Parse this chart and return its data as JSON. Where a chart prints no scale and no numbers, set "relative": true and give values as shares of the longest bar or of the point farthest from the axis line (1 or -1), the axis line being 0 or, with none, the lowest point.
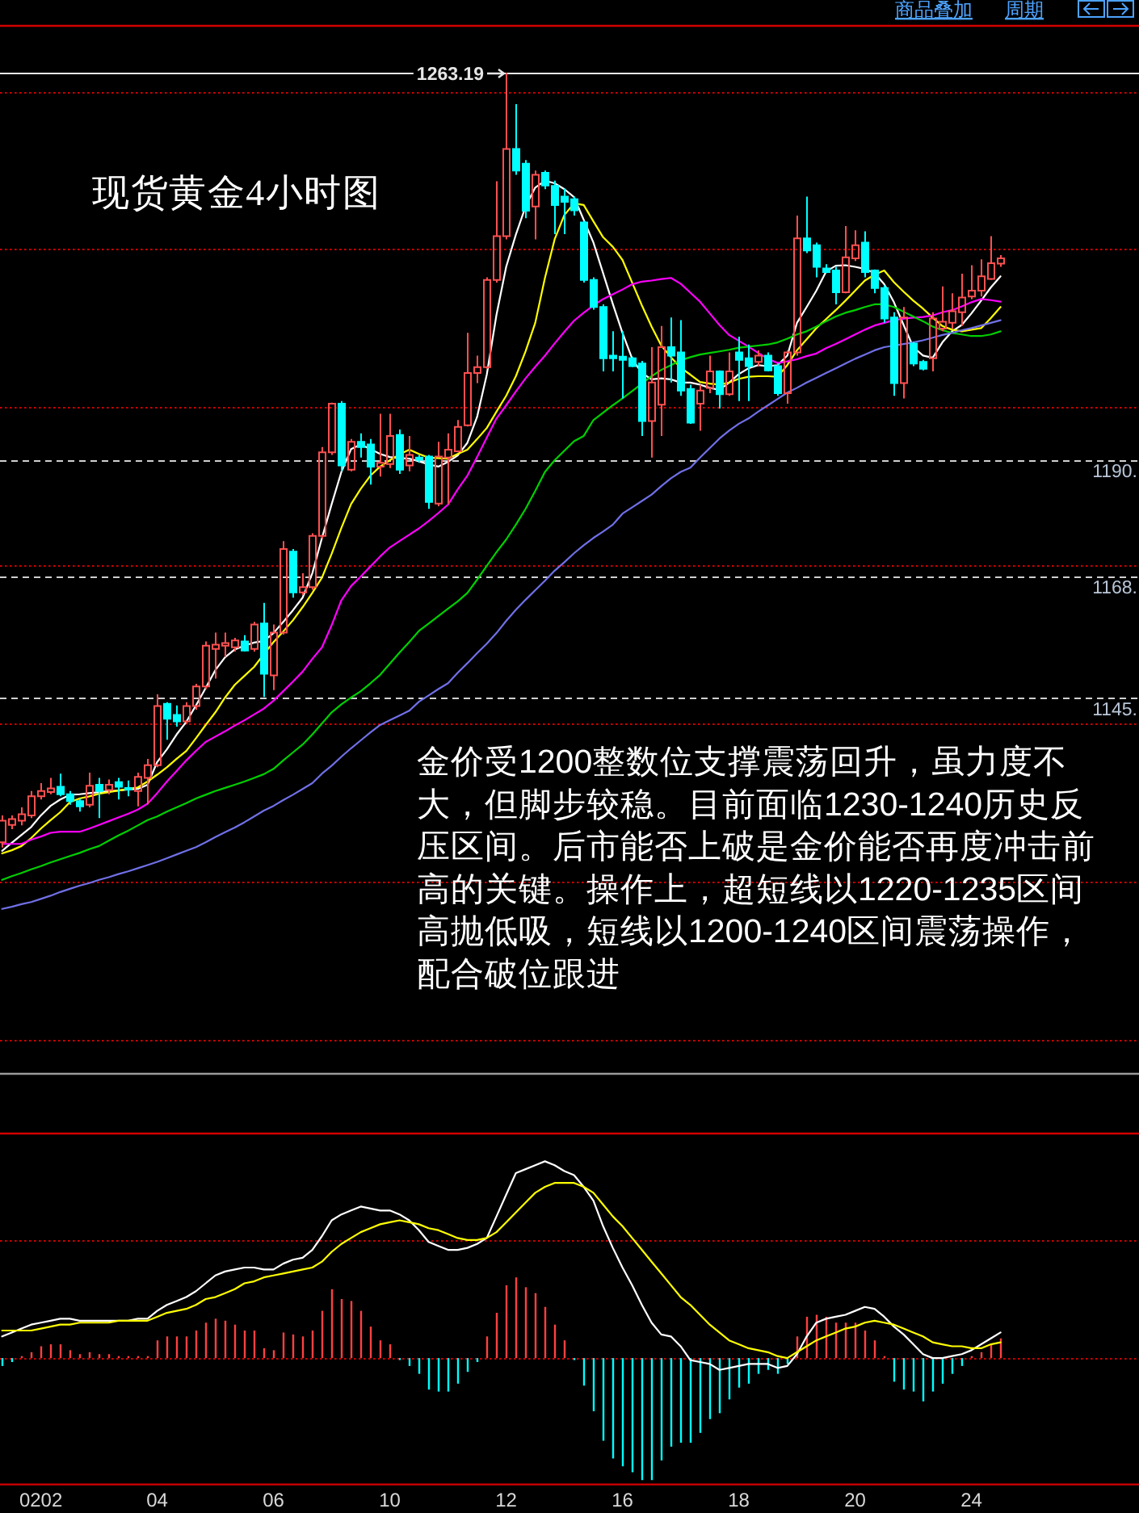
{
  "chart_data": [
    {
      "type": "candlestick",
      "title": "现货黄金4小时图",
      "annotations": [
        "金价受1200整数位支撑震荡回升，虽力度不大，但脚步较稳。目前面临1230-1240历史反压区间。后市能否上破是金价能否再度冲击前高的关键。操作上，超短线以1220-1235区间高抛低吸，短线以1200-1240区间震荡操作，配合破位跟进",
        "商品叠加",
        "周期"
      ],
      "categories": [
        null,
        null,
        null,
        null,
        null,
        null,
        null,
        null,
        null,
        null,
        null,
        null,
        null,
        null,
        null,
        null,
        null,
        null,
        null,
        null,
        null,
        null,
        null,
        null,
        null,
        null,
        null,
        null,
        null,
        null,
        null,
        null,
        null,
        null,
        null,
        null,
        null,
        null,
        null,
        null,
        null,
        null,
        null,
        null,
        null,
        null,
        null,
        null,
        null,
        null,
        null,
        null,
        null,
        null,
        null,
        null,
        null,
        null,
        null,
        null,
        null,
        null,
        null,
        null,
        null,
        null,
        null,
        null,
        null,
        null,
        null,
        null,
        null,
        null,
        null,
        null,
        null,
        null,
        null,
        null,
        null,
        null,
        null,
        null,
        null,
        null,
        null,
        null,
        null,
        null,
        null,
        null,
        null,
        null,
        null,
        null,
        null,
        null,
        null,
        null,
        null,
        null,
        null,
        null
      ],
      "ohlc": [
        [
          1117.6,
          1122.7,
          1116.6,
          1121.7
        ],
        [
          1120.9,
          1122.7,
          1120.1,
          1122.0
        ],
        [
          1121.7,
          1124.2,
          1120.8,
          1122.9
        ],
        [
          1122.7,
          1127.3,
          1122.2,
          1126.3
        ],
        [
          1126.3,
          1128.8,
          1125.7,
          1127.3
        ],
        [
          1127.1,
          1129.8,
          1126.7,
          1127.8
        ],
        [
          1128.1,
          1130.6,
          1126.3,
          1126.7
        ],
        [
          1126.7,
          1127.3,
          1124.7,
          1125.4
        ],
        [
          1125.4,
          1125.9,
          1123.4,
          1124.4
        ],
        [
          1124.7,
          1130.8,
          1124.2,
          1128.3
        ],
        [
          1128.5,
          1129.8,
          1122.2,
          1127.3
        ],
        [
          1127.5,
          1129.5,
          1126.7,
          1128.5
        ],
        [
          1129.0,
          1129.8,
          1125.7,
          1128.1
        ],
        [
          1127.9,
          1129.3,
          1126.3,
          1127.6
        ],
        [
          1127.3,
          1130.8,
          1124.4,
          1130.0
        ],
        [
          1129.8,
          1133.4,
          1124.8,
          1132.2
        ],
        [
          1132.2,
          1145.6,
          1131.8,
          1143.4
        ],
        [
          1143.8,
          1144.1,
          1137.0,
          1141.0
        ],
        [
          1141.7,
          1143.5,
          1139.5,
          1140.5
        ],
        [
          1140.5,
          1144.1,
          1140.0,
          1143.4
        ],
        [
          1143.4,
          1147.6,
          1142.7,
          1147.1
        ],
        [
          1147.1,
          1155.6,
          1146.6,
          1154.8
        ],
        [
          1154.2,
          1157.3,
          1148.6,
          1155.0
        ],
        [
          1154.8,
          1157.3,
          1152.7,
          1155.3
        ],
        [
          1154.5,
          1156.3,
          1153.7,
          1155.8
        ],
        [
          1155.6,
          1156.8,
          1153.7,
          1153.9
        ],
        [
          1154.2,
          1159.3,
          1153.7,
          1158.8
        ],
        [
          1159.0,
          1162.9,
          1145.1,
          1149.5
        ],
        [
          1149.2,
          1158.8,
          1146.4,
          1157.3
        ],
        [
          1157.3,
          1174.6,
          1156.9,
          1173.1
        ],
        [
          1172.6,
          1173.1,
          1163.9,
          1164.9
        ],
        [
          1164.9,
          1168.5,
          1164.4,
          1165.9
        ],
        [
          1165.9,
          1176.1,
          1165.4,
          1175.6
        ],
        [
          1175.6,
          1192.4,
          1175.1,
          1191.4
        ],
        [
          1191.4,
          1200.8,
          1190.9,
          1200.6
        ],
        [
          1200.6,
          1201.1,
          1187.8,
          1188.9
        ],
        [
          1188.1,
          1193.9,
          1187.8,
          1193.4
        ],
        [
          1193.4,
          1195.0,
          1190.4,
          1192.4
        ],
        [
          1192.9,
          1193.9,
          1185.3,
          1188.7
        ],
        [
          1188.7,
          1198.7,
          1186.8,
          1189.4
        ],
        [
          1189.2,
          1198.7,
          1188.4,
          1194.5
        ],
        [
          1194.7,
          1195.7,
          1187.3,
          1188.1
        ],
        [
          1188.9,
          1194.5,
          1187.8,
          1190.9
        ],
        [
          1190.4,
          1190.9,
          1189.4,
          1190.0
        ],
        [
          1190.6,
          1190.9,
          1180.7,
          1182.0
        ],
        [
          1181.7,
          1193.4,
          1181.2,
          1190.6
        ],
        [
          1190.4,
          1195.0,
          1181.6,
          1191.9
        ],
        [
          1191.6,
          1197.5,
          1191.4,
          1196.2
        ],
        [
          1196.5,
          1214.0,
          1196.3,
          1206.4
        ],
        [
          1206.4,
          1209.7,
          1204.5,
          1207.5
        ],
        [
          1207.5,
          1224.5,
          1207.2,
          1224.0
        ],
        [
          1224.0,
          1242.7,
          1223.5,
          1232.3
        ],
        [
          1232.3,
          1263.19,
          1231.7,
          1248.8
        ],
        [
          1248.8,
          1257.3,
          1243.9,
          1244.7
        ],
        [
          1246.0,
          1246.7,
          1235.7,
          1237.1
        ],
        [
          1237.9,
          1244.7,
          1231.7,
          1243.9
        ],
        [
          1244.3,
          1244.7,
          1241.2,
          1241.9
        ],
        [
          1241.8,
          1242.8,
          1232.7,
          1238.2
        ],
        [
          1239.8,
          1241.3,
          1232.7,
          1238.8
        ],
        [
          1239.3,
          1239.8,
          1236.2,
          1237.2
        ],
        [
          1234.9,
          1235.2,
          1223.5,
          1224.0
        ],
        [
          1224.0,
          1224.5,
          1218.4,
          1218.9
        ],
        [
          1218.9,
          1219.4,
          1206.7,
          1209.2
        ],
        [
          1209.7,
          1214.3,
          1206.7,
          1209.2
        ],
        [
          1209.5,
          1214.3,
          1201.6,
          1208.9
        ],
        [
          1209.2,
          1209.5,
          1207.5,
          1207.7
        ],
        [
          1208.2,
          1208.7,
          1194.5,
          1197.3
        ],
        [
          1197.3,
          1211.3,
          1190.4,
          1204.6
        ],
        [
          1200.4,
          1215.3,
          1194.5,
          1211.3
        ],
        [
          1211.3,
          1216.9,
          1204.6,
          1209.7
        ],
        [
          1210.3,
          1216.4,
          1202.1,
          1203.1
        ],
        [
          1203.4,
          1204.2,
          1196.8,
          1197.0
        ],
        [
          1200.6,
          1204.2,
          1195.5,
          1203.1
        ],
        [
          1203.6,
          1209.7,
          1202.6,
          1206.7
        ],
        [
          1206.7,
          1206.9,
          1199.7,
          1202.4
        ],
        [
          1202.4,
          1210.3,
          1202.1,
          1206.7
        ],
        [
          1210.3,
          1213.3,
          1201.1,
          1208.9
        ],
        [
          1209.2,
          1211.8,
          1201.1,
          1207.7
        ],
        [
          1208.5,
          1210.7,
          1207.7,
          1209.7
        ],
        [
          1209.7,
          1210.3,
          1206.7,
          1206.9
        ],
        [
          1207.7,
          1208.2,
          1202.1,
          1202.6
        ],
        [
          1202.6,
          1210.7,
          1200.6,
          1210.3
        ],
        [
          1210.3,
          1236.2,
          1209.7,
          1231.9
        ],
        [
          1231.9,
          1239.8,
          1229.1,
          1229.6
        ],
        [
          1230.6,
          1231.1,
          1224.5,
          1226.5
        ],
        [
          1226.2,
          1227.0,
          1225.3,
          1225.5
        ],
        [
          1225.8,
          1226.5,
          1219.4,
          1221.7
        ],
        [
          1221.7,
          1234.2,
          1221.5,
          1228.3
        ],
        [
          1228.1,
          1233.4,
          1227.6,
          1230.6
        ],
        [
          1231.1,
          1233.2,
          1224.5,
          1225.5
        ],
        [
          1225.8,
          1226.0,
          1221.5,
          1222.5
        ],
        [
          1222.5,
          1223.0,
          1215.9,
          1216.7
        ],
        [
          1216.9,
          1217.9,
          1202.1,
          1204.5
        ],
        [
          1204.5,
          1218.9,
          1201.6,
          1216.9
        ],
        [
          1212.0,
          1212.3,
          1207.7,
          1208.2
        ],
        [
          1208.5,
          1208.9,
          1206.9,
          1207.2
        ],
        [
          1209.2,
          1217.9,
          1206.7,
          1216.7
        ],
        [
          1214.8,
          1222.8,
          1214.3,
          1216.1
        ],
        [
          1215.9,
          1221.5,
          1214.8,
          1218.1
        ],
        [
          1217.9,
          1225.2,
          1215.3,
          1220.7
        ],
        [
          1220.9,
          1226.8,
          1220.4,
          1222.0
        ],
        [
          1222.0,
          1227.9,
          1220.9,
          1224.7
        ],
        [
          1224.2,
          1232.3,
          1224.0,
          1227.2
        ],
        [
          1227.1,
          1228.7,
          1226.5,
          1228.1
        ]
      ],
      "colors": [
        "#ff5050",
        "#ff5050",
        "#ff5050",
        "#ff5050",
        "#ff5050",
        "#ff5050",
        "#00ffff",
        "#00ffff",
        "#00ffff",
        "#ff5050",
        "#00ffff",
        "#ff5050",
        "#00ffff",
        "#00ffff",
        "#ff5050",
        "#ff5050",
        "#ff5050",
        "#00ffff",
        "#00ffff",
        "#ff5050",
        "#ff5050",
        "#ff5050",
        "#ff5050",
        "#ff5050",
        "#ff5050",
        "#00ffff",
        "#ff5050",
        "#00ffff",
        "#ff5050",
        "#ff5050",
        "#00ffff",
        "#ff5050",
        "#ff5050",
        "#ff5050",
        "#ff5050",
        "#00ffff",
        "#ff5050",
        "#00ffff",
        "#00ffff",
        "#ff5050",
        "#ff5050",
        "#00ffff",
        "#ff5050",
        "#00ffff",
        "#00ffff",
        "#ff5050",
        "#ff5050",
        "#ff5050",
        "#ff5050",
        "#ff5050",
        "#ff5050",
        "#ff5050",
        "#ff5050",
        "#00ffff",
        "#00ffff",
        "#ff5050",
        "#00ffff",
        "#00ffff",
        "#00ffff",
        "#00ffff",
        "#00ffff",
        "#00ffff",
        "#00ffff",
        "#00ffff",
        "#00ffff",
        "#00ffff",
        "#00ffff",
        "#ff5050",
        "#ff5050",
        "#00ffff",
        "#00ffff",
        "#00ffff",
        "#ff5050",
        "#ff5050",
        "#00ffff",
        "#ff5050",
        "#00ffff",
        "#00ffff",
        "#ff5050",
        "#00ffff",
        "#00ffff",
        "#ff5050",
        "#ff5050",
        "#00ffff",
        "#00ffff",
        "#00ffff",
        "#00ffff",
        "#ff5050",
        "#ff5050",
        "#00ffff",
        "#00ffff",
        "#00ffff",
        "#00ffff",
        "#ff5050",
        "#00ffff",
        "#00ffff",
        "#ff5050",
        "#ff5050",
        "#ff5050",
        "#ff5050",
        "#ff5050",
        "#ff5050",
        "#ff5050",
        "#ff5050"
      ],
      "series": [
        {
          "type": "line",
          "color": "#ffffff",
          "values": [
            1116.0,
            1117.5,
            1119.0,
            1120.5,
            1122.7,
            1124.5,
            1125.7,
            1126.6,
            1126.7,
            1126.9,
            1127.1,
            1127.3,
            1127.4,
            1127.6,
            1127.7,
            1128.5,
            1132.8,
            1135.2,
            1138.0,
            1140.4,
            1143.5,
            1146.8,
            1150.2,
            1152.6,
            1154.1,
            1154.8,
            1155.4,
            1155.7,
            1157.2,
            1159.3,
            1161.5,
            1163.9,
            1168.5,
            1175.2,
            1181.6,
            1187.7,
            1192.0,
            1192.9,
            1192.0,
            1191.1,
            1190.5,
            1190.3,
            1190.2,
            1189.7,
            1189.1,
            1188.7,
            1189.6,
            1190.8,
            1193.2,
            1198.1,
            1206.1,
            1217.4,
            1226.5,
            1232.6,
            1237.9,
            1241.5,
            1242.8,
            1242.3,
            1241.2,
            1239.7,
            1235.4,
            1231.1,
            1225.3,
            1219.5,
            1214.0,
            1209.1,
            1206.4,
            1205.2,
            1205.4,
            1205.2,
            1204.6,
            1204.6,
            1204.2,
            1203.6,
            1203.2,
            1204.6,
            1206.2,
            1207.3,
            1207.9,
            1207.7,
            1207.9,
            1209.7,
            1215.9,
            1218.9,
            1222.0,
            1225.6,
            1226.7,
            1226.8,
            1226.5,
            1226.1,
            1225.3,
            1223.2,
            1219.8,
            1215.5,
            1211.3,
            1209.7,
            1209.3,
            1212.2,
            1214.3,
            1215.5,
            1217.7,
            1220.1,
            1222.6,
            1224.7
          ]
        },
        {
          "type": "line",
          "color": "#ffff00",
          "values": [
            1115.5,
            1116.1,
            1116.9,
            1118.4,
            1120.2,
            1121.8,
            1123.3,
            1125.2,
            1125.9,
            1126.3,
            1126.8,
            1127.1,
            1127.4,
            1127.7,
            1128.0,
            1129.1,
            1130.4,
            1131.8,
            1133.4,
            1134.9,
            1137.3,
            1139.8,
            1142.2,
            1145.0,
            1147.4,
            1149.1,
            1150.8,
            1153.2,
            1155.5,
            1157.5,
            1159.6,
            1162.1,
            1164.8,
            1167.7,
            1172.2,
            1177.1,
            1181.6,
            1184.5,
            1187.0,
            1188.7,
            1189.9,
            1191.0,
            1191.9,
            1191.1,
            1190.4,
            1190.3,
            1190.2,
            1191.1,
            1191.9,
            1193.9,
            1196.0,
            1199.1,
            1202.1,
            1205.8,
            1210.5,
            1215.9,
            1224.4,
            1231.7,
            1236.3,
            1238.5,
            1238.2,
            1235.1,
            1232.1,
            1230.3,
            1227.8,
            1223.5,
            1219.2,
            1215.2,
            1211.6,
            1209.4,
            1207.4,
            1206.1,
            1204.7,
            1204.4,
            1204.2,
            1204.6,
            1205.3,
            1205.7,
            1205.8,
            1205.8,
            1205.7,
            1207.9,
            1210.7,
            1212.8,
            1214.9,
            1216.6,
            1218.3,
            1220.1,
            1222.0,
            1223.9,
            1225.0,
            1225.8,
            1223.6,
            1221.8,
            1220.1,
            1218.6,
            1216.9,
            1215.3,
            1214.6,
            1214.3,
            1214.6,
            1214.9,
            1216.8,
            1218.9
          ]
        },
        {
          "type": "line",
          "color": "#ff00ff",
          "values": [
            1117.3,
            1117.3,
            1117.3,
            1118.1,
            1118.7,
            1119.4,
            1119.6,
            1119.6,
            1119.6,
            1120.2,
            1120.9,
            1121.6,
            1122.3,
            1123.0,
            1123.8,
            1124.9,
            1126.9,
            1129.1,
            1131.1,
            1133.1,
            1134.9,
            1136.6,
            1137.6,
            1138.6,
            1139.7,
            1140.7,
            1141.8,
            1142.9,
            1144.4,
            1146.2,
            1148.0,
            1149.9,
            1152.3,
            1154.5,
            1158.7,
            1163.4,
            1166.1,
            1167.9,
            1169.8,
            1171.7,
            1173.4,
            1174.6,
            1175.8,
            1177.0,
            1178.4,
            1179.9,
            1181.5,
            1184.4,
            1187.0,
            1190.5,
            1194.2,
            1197.8,
            1200.3,
            1202.9,
            1205.4,
            1207.6,
            1209.7,
            1212.0,
            1214.2,
            1216.3,
            1217.8,
            1219.2,
            1220.4,
            1221.3,
            1222.2,
            1223.2,
            1223.7,
            1223.9,
            1224.2,
            1224.4,
            1223.3,
            1221.6,
            1219.9,
            1217.7,
            1215.5,
            1213.6,
            1212.5,
            1211.4,
            1210.2,
            1209.1,
            1208.3,
            1208.6,
            1209.0,
            1209.6,
            1210.1,
            1211.1,
            1211.9,
            1212.8,
            1213.7,
            1214.6,
            1215.4,
            1215.9,
            1216.4,
            1216.7,
            1216.9,
            1217.0,
            1217.3,
            1217.9,
            1218.3,
            1219.0,
            1219.8,
            1220.4,
            1220.2,
            1219.9
          ]
        },
        {
          "type": "line",
          "color": "#00d000",
          "values": [
            1110.5,
            1111.2,
            1111.8,
            1112.5,
            1113.1,
            1113.8,
            1114.4,
            1115.0,
            1115.6,
            1116.3,
            1116.9,
            1117.9,
            1118.9,
            1119.8,
            1120.8,
            1121.8,
            1122.5,
            1123.4,
            1124.2,
            1125.0,
            1125.9,
            1126.6,
            1127.3,
            1127.9,
            1128.5,
            1129.1,
            1129.8,
            1130.5,
            1131.5,
            1133.1,
            1134.6,
            1136.1,
            1138.0,
            1140.1,
            1142.2,
            1143.7,
            1145.0,
            1146.2,
            1147.7,
            1149.3,
            1151.4,
            1153.5,
            1155.5,
            1157.6,
            1159.0,
            1160.4,
            1161.8,
            1163.2,
            1164.8,
            1167.3,
            1169.9,
            1172.5,
            1174.9,
            1177.7,
            1180.7,
            1184.1,
            1187.7,
            1189.9,
            1191.7,
            1193.5,
            1194.5,
            1197.5,
            1198.9,
            1200.3,
            1201.6,
            1203.0,
            1204.4,
            1205.8,
            1207.0,
            1207.9,
            1208.8,
            1209.4,
            1209.9,
            1210.2,
            1210.5,
            1210.8,
            1211.2,
            1211.4,
            1211.6,
            1211.8,
            1212.2,
            1212.9,
            1213.7,
            1214.3,
            1215.2,
            1216.2,
            1217.1,
            1217.8,
            1218.3,
            1218.9,
            1219.4,
            1219.4,
            1218.9,
            1218.0,
            1217.1,
            1216.2,
            1215.2,
            1214.5,
            1214.0,
            1213.7,
            1213.4,
            1213.4,
            1213.7,
            1214.3
          ]
        },
        {
          "type": "line",
          "color": "#7070e8",
          "values": [
            1105.0,
            1105.4,
            1105.9,
            1106.3,
            1106.9,
            1107.5,
            1108.2,
            1108.8,
            1109.4,
            1109.9,
            1110.5,
            1111.0,
            1111.6,
            1112.1,
            1112.7,
            1113.3,
            1113.9,
            1114.6,
            1115.3,
            1116.0,
            1116.7,
            1117.6,
            1118.6,
            1119.5,
            1120.4,
            1121.4,
            1122.5,
            1123.6,
            1124.5,
            1125.6,
            1126.6,
            1127.7,
            1128.8,
            1130.6,
            1132.1,
            1133.8,
            1135.4,
            1136.9,
            1138.4,
            1139.8,
            1140.7,
            1141.6,
            1142.5,
            1144.2,
            1145.4,
            1146.6,
            1147.7,
            1149.7,
            1151.5,
            1153.4,
            1155.2,
            1157.2,
            1159.5,
            1161.6,
            1163.5,
            1165.3,
            1167.1,
            1169.0,
            1170.6,
            1172.3,
            1173.8,
            1175.2,
            1176.4,
            1177.7,
            1179.8,
            1181.0,
            1182.2,
            1183.4,
            1185.0,
            1186.5,
            1187.7,
            1188.5,
            1190.4,
            1192.2,
            1194.0,
            1195.5,
            1196.8,
            1197.8,
            1199.1,
            1200.3,
            1201.5,
            1202.7,
            1203.6,
            1204.6,
            1205.5,
            1206.4,
            1207.3,
            1208.2,
            1209.1,
            1209.9,
            1210.7,
            1211.3,
            1211.6,
            1211.9,
            1212.2,
            1212.6,
            1213.1,
            1213.6,
            1214.0,
            1214.5,
            1214.9,
            1215.4,
            1215.9,
            1216.4
          ]
        }
      ],
      "ylim": [
        1073.8,
        1272.1
      ],
      "yticks": [
        {
          "value": 1145,
          "label": "1145."
        },
        {
          "value": 1168,
          "label": "1168."
        },
        {
          "value": 1190,
          "label": "1190."
        }
      ],
      "grid": "y",
      "ref_lines": [
        {
          "axis": "y",
          "value": 1259.6,
          "color": "#cc0000",
          "line_style": "dotted"
        },
        {
          "axis": "y",
          "value": 1229.8,
          "color": "#cc0000",
          "line_style": "dotted"
        },
        {
          "axis": "y",
          "value": 1199.9,
          "color": "#cc0000",
          "line_style": "dotted"
        },
        {
          "axis": "y",
          "value": 1169.9,
          "color": "#cc0000",
          "line_style": "dotted"
        },
        {
          "axis": "y",
          "value": 1140.0,
          "color": "#cc0000",
          "line_style": "dotted"
        },
        {
          "axis": "y",
          "value": 1110.1,
          "color": "#cc0000",
          "line_style": "dotted"
        },
        {
          "axis": "y",
          "value": 1080.1,
          "color": "#cc0000",
          "line_style": "dotted"
        },
        {
          "axis": "y",
          "value": 1263.19,
          "label": "1263.19",
          "color": "#e6e6e6"
        }
      ],
      "tick_labels": "y"
    },
    {
      "type": "bar",
      "relative": true,
      "categories": [
        null,
        null,
        null,
        null,
        "0202",
        null,
        null,
        null,
        null,
        null,
        null,
        null,
        null,
        null,
        null,
        null,
        "04",
        null,
        null,
        null,
        null,
        null,
        null,
        null,
        null,
        null,
        null,
        null,
        "06",
        null,
        null,
        null,
        null,
        null,
        null,
        null,
        null,
        null,
        null,
        null,
        "10",
        null,
        null,
        null,
        null,
        null,
        null,
        null,
        null,
        null,
        null,
        null,
        "12",
        null,
        null,
        null,
        null,
        null,
        null,
        null,
        null,
        null,
        null,
        null,
        "16",
        null,
        null,
        null,
        null,
        null,
        null,
        null,
        null,
        null,
        null,
        null,
        "18",
        null,
        null,
        null,
        null,
        null,
        null,
        null,
        null,
        null,
        null,
        null,
        "20",
        null,
        null,
        null,
        null,
        null,
        null,
        null,
        null,
        null,
        null,
        null,
        "24",
        null,
        null,
        null
      ],
      "series": [
        {
          "colors": [
            "#00ffff",
            "#00ffff",
            "#ff4040",
            "#ff4040",
            "#ff4040",
            "#ff4040",
            "#ff4040",
            "#ff4040",
            "#ff4040",
            "#ff4040",
            "#ff4040",
            "#ff4040",
            "#ff4040",
            "#ff4040",
            "#ff4040",
            "#ff4040",
            "#ff4040",
            "#ff4040",
            "#ff4040",
            "#ff4040",
            "#ff4040",
            "#ff4040",
            "#ff4040",
            "#ff4040",
            "#ff4040",
            "#ff4040",
            "#ff4040",
            "#ff4040",
            "#ff4040",
            "#ff4040",
            "#ff4040",
            "#ff4040",
            "#ff4040",
            "#ff4040",
            "#ff4040",
            "#ff4040",
            "#ff4040",
            "#ff4040",
            "#ff4040",
            "#ff4040",
            "#ff4040",
            "#00ffff",
            "#00ffff",
            "#00ffff",
            "#00ffff",
            "#00ffff",
            "#00ffff",
            "#00ffff",
            "#00ffff",
            "#00ffff",
            "#ff4040",
            "#ff4040",
            "#ff4040",
            "#ff4040",
            "#ff4040",
            "#ff4040",
            "#ff4040",
            "#ff4040",
            "#ff4040",
            "#00ffff",
            "#00ffff",
            "#00ffff",
            "#00ffff",
            "#00ffff",
            "#00ffff",
            "#00ffff",
            "#00ffff",
            "#00ffff",
            "#00ffff",
            "#00ffff",
            "#00ffff",
            "#00ffff",
            "#00ffff",
            "#00ffff",
            "#00ffff",
            "#00ffff",
            "#00ffff",
            "#00ffff",
            "#00ffff",
            "#00ffff",
            "#00ffff",
            "#00ffff",
            "#ff4040",
            "#ff4040",
            "#ff4040",
            "#ff4040",
            "#ff4040",
            "#ff4040",
            "#ff4040",
            "#ff4040",
            "#ff4040",
            "#ff4040",
            "#00ffff",
            "#00ffff",
            "#00ffff",
            "#00ffff",
            "#00ffff",
            "#00ffff",
            "#00ffff",
            "#00ffff",
            "#ff4040",
            "#ff4040",
            "#ff4040",
            "#ff4040"
          ],
          "values": [
            -0.04,
            -0.02,
            0.01,
            0.03,
            0.06,
            0.07,
            0.07,
            0.04,
            0.02,
            0.03,
            0.02,
            0.02,
            0.01,
            0.01,
            0.01,
            0.01,
            0.09,
            0.11,
            0.11,
            0.11,
            0.14,
            0.18,
            0.2,
            0.19,
            0.17,
            0.14,
            0.14,
            0.05,
            0.04,
            0.13,
            0.12,
            0.11,
            0.14,
            0.24,
            0.35,
            0.3,
            0.29,
            0.24,
            0.16,
            0.09,
            0.07,
            -0.01,
            -0.04,
            -0.08,
            -0.16,
            -0.17,
            -0.17,
            -0.13,
            -0.07,
            -0.02,
            0.11,
            0.23,
            0.37,
            0.41,
            0.36,
            0.33,
            0.26,
            0.17,
            0.09,
            -0.01,
            -0.14,
            -0.27,
            -0.42,
            -0.51,
            -0.55,
            -0.58,
            -0.62,
            -0.62,
            -0.52,
            -0.45,
            -0.43,
            -0.43,
            -0.38,
            -0.31,
            -0.28,
            -0.21,
            -0.15,
            -0.13,
            -0.08,
            -0.06,
            -0.08,
            -0.03,
            0.11,
            0.21,
            0.22,
            0.21,
            0.18,
            0.18,
            0.18,
            0.14,
            0.09,
            0.01,
            -0.12,
            -0.16,
            -0.17,
            -0.22,
            -0.17,
            -0.13,
            -0.08,
            -0.04,
            0.01,
            0.03,
            0.07,
            0.1
          ]
        },
        {
          "type": "line",
          "color": "#ffffff",
          "values": [
            0.11,
            0.13,
            0.15,
            0.17,
            0.18,
            0.19,
            0.2,
            0.2,
            0.19,
            0.19,
            0.19,
            0.19,
            0.19,
            0.19,
            0.2,
            0.2,
            0.24,
            0.27,
            0.29,
            0.31,
            0.34,
            0.38,
            0.42,
            0.44,
            0.45,
            0.46,
            0.46,
            0.45,
            0.45,
            0.48,
            0.5,
            0.51,
            0.55,
            0.62,
            0.7,
            0.73,
            0.75,
            0.77,
            0.76,
            0.75,
            0.75,
            0.73,
            0.7,
            0.65,
            0.59,
            0.57,
            0.55,
            0.55,
            0.56,
            0.58,
            0.61,
            0.72,
            0.83,
            0.94,
            0.96,
            0.98,
            1,
            0.98,
            0.95,
            0.93,
            0.87,
            0.8,
            0.67,
            0.56,
            0.46,
            0.37,
            0.27,
            0.18,
            0.12,
            0.11,
            0.06,
            -0.01,
            -0.02,
            -0.03,
            -0.06,
            -0.05,
            -0.04,
            -0.03,
            -0.03,
            -0.03,
            -0.05,
            -0.04,
            0.02,
            0.11,
            0.18,
            0.2,
            0.21,
            0.22,
            0.24,
            0.26,
            0.25,
            0.21,
            0.16,
            0.12,
            0.07,
            0.02,
            0,
            0,
            0.01,
            0.02,
            0.04,
            0.07,
            0.1,
            0.13
          ]
        },
        {
          "type": "line",
          "color": "#ffff00",
          "values": [
            0.14,
            0.14,
            0.14,
            0.14,
            0.15,
            0.16,
            0.17,
            0.17,
            0.18,
            0.18,
            0.18,
            0.18,
            0.19,
            0.19,
            0.19,
            0.19,
            0.21,
            0.23,
            0.24,
            0.25,
            0.27,
            0.3,
            0.31,
            0.33,
            0.35,
            0.38,
            0.39,
            0.41,
            0.42,
            0.43,
            0.44,
            0.45,
            0.46,
            0.49,
            0.54,
            0.58,
            0.61,
            0.64,
            0.66,
            0.68,
            0.69,
            0.7,
            0.69,
            0.68,
            0.66,
            0.65,
            0.63,
            0.61,
            0.6,
            0.6,
            0.61,
            0.64,
            0.69,
            0.74,
            0.79,
            0.84,
            0.87,
            0.89,
            0.89,
            0.89,
            0.87,
            0.84,
            0.78,
            0.72,
            0.67,
            0.61,
            0.55,
            0.49,
            0.43,
            0.37,
            0.31,
            0.27,
            0.22,
            0.17,
            0.13,
            0.09,
            0.07,
            0.05,
            0.04,
            0.03,
            0.01,
            0,
            0.03,
            0.06,
            0.09,
            0.11,
            0.13,
            0.15,
            0.16,
            0.18,
            0.19,
            0.18,
            0.17,
            0.15,
            0.13,
            0.11,
            0.08,
            0.07,
            0.06,
            0.06,
            0.05,
            0.05,
            0.07,
            0.08
          ]
        }
      ],
      "ref_lines": [
        {
          "axis": "y",
          "value": 0,
          "color": "#cc0000",
          "line_style": "dotted"
        },
        {
          "axis": "y",
          "value": 0.6,
          "color": "#cc0000",
          "line_style": "dotted"
        }
      ],
      "tick_labels": "x"
    }
  ]
}
